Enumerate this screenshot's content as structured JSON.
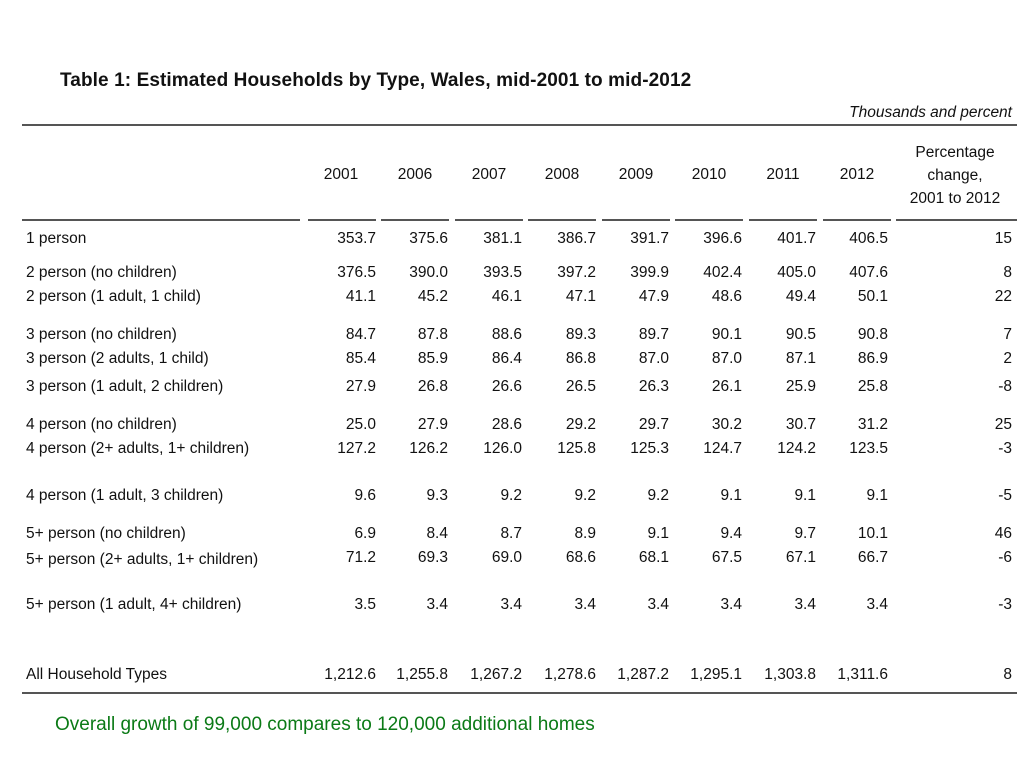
{
  "title": "Table 1: Estimated Households by Type, Wales, mid-2001 to mid-2012",
  "units": "Thousands and percent",
  "columns": [
    "2001",
    "2006",
    "2007",
    "2008",
    "2009",
    "2010",
    "2011",
    "2012"
  ],
  "pct_header": [
    "Percentage",
    "change,",
    "2001 to 2012"
  ],
  "rows": [
    {
      "label": "1 person",
      "values": [
        "353.7",
        "375.6",
        "381.1",
        "386.7",
        "391.7",
        "396.6",
        "401.7",
        "406.5"
      ],
      "pct": "15"
    },
    {
      "label": "2 person (no children)",
      "values": [
        "376.5",
        "390.0",
        "393.5",
        "397.2",
        "399.9",
        "402.4",
        "405.0",
        "407.6"
      ],
      "pct": "8"
    },
    {
      "label": "2 person (1 adult, 1 child)",
      "values": [
        "41.1",
        "45.2",
        "46.1",
        "47.1",
        "47.9",
        "48.6",
        "49.4",
        "50.1"
      ],
      "pct": "22"
    },
    {
      "label": "3 person (no children)",
      "values": [
        "84.7",
        "87.8",
        "88.6",
        "89.3",
        "89.7",
        "90.1",
        "90.5",
        "90.8"
      ],
      "pct": "7"
    },
    {
      "label": "3 person (2 adults, 1 child)",
      "values": [
        "85.4",
        "85.9",
        "86.4",
        "86.8",
        "87.0",
        "87.0",
        "87.1",
        "86.9"
      ],
      "pct": "2"
    },
    {
      "label": "3 person (1 adult, 2 children)",
      "values": [
        "27.9",
        "26.8",
        "26.6",
        "26.5",
        "26.3",
        "26.1",
        "25.9",
        "25.8"
      ],
      "pct": "-8"
    },
    {
      "label": "4 person (no children)",
      "values": [
        "25.0",
        "27.9",
        "28.6",
        "29.2",
        "29.7",
        "30.2",
        "30.7",
        "31.2"
      ],
      "pct": "25"
    },
    {
      "label": "4 person (2+ adults, 1+ children)",
      "values": [
        "127.2",
        "126.2",
        "126.0",
        "125.8",
        "125.3",
        "124.7",
        "124.2",
        "123.5"
      ],
      "pct": "-3"
    },
    {
      "label": "4 person (1 adult, 3 children)",
      "values": [
        "9.6",
        "9.3",
        "9.2",
        "9.2",
        "9.2",
        "9.1",
        "9.1",
        "9.1"
      ],
      "pct": "-5"
    },
    {
      "label": "5+ person (no children)",
      "values": [
        "6.9",
        "8.4",
        "8.7",
        "8.9",
        "9.1",
        "9.4",
        "9.7",
        "10.1"
      ],
      "pct": "46"
    },
    {
      "label": "5+ person (2+ adults, 1+ children)",
      "values": [
        "71.2",
        "69.3",
        "69.0",
        "68.6",
        "68.1",
        "67.5",
        "67.1",
        "66.7"
      ],
      "pct": "-6"
    },
    {
      "label": "5+ person (1 adult, 4+ children)",
      "values": [
        "3.5",
        "3.4",
        "3.4",
        "3.4",
        "3.4",
        "3.4",
        "3.4",
        "3.4"
      ],
      "pct": "-3"
    },
    {
      "label": "All Household Types",
      "values": [
        "1,212.6",
        "1,255.8",
        "1,267.2",
        "1,278.6",
        "1,287.2",
        "1,295.1",
        "1,303.8",
        "1,311.6"
      ],
      "pct": "8"
    }
  ],
  "caption": "Overall growth of 99,000 compares to 120,000 additional homes",
  "caption_color": "#0b7a16"
}
